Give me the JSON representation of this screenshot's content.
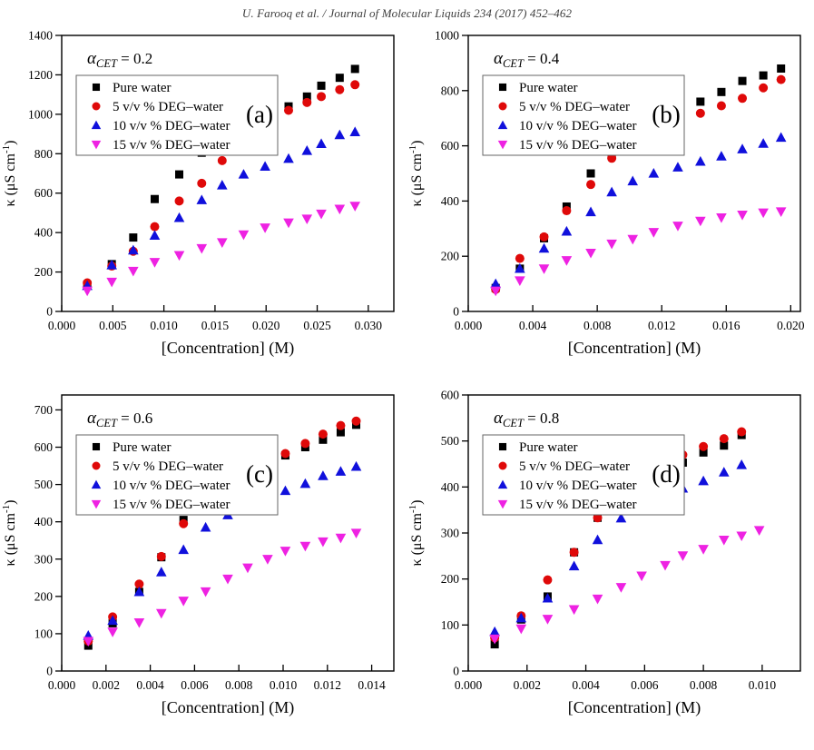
{
  "page": {
    "header": "U. Farooq et al. / Journal of Molecular Liquids 234 (2017) 452–462"
  },
  "chart_data": [
    {
      "type": "scatter",
      "letter": "(a)",
      "alpha": {
        "symbol": "α",
        "sub": "CET",
        "value": "= 0.2"
      },
      "xlabel": "[Concentration] (M)",
      "ylabel": {
        "pre": "κ (μS cm",
        "sup": "-1",
        "post": ")"
      },
      "xlim": [
        0,
        0.0325
      ],
      "ylim": [
        0,
        1400
      ],
      "xticks": [
        0,
        0.005,
        0.01,
        0.015,
        0.02,
        0.025,
        0.03
      ],
      "yticks": [
        0,
        200,
        400,
        600,
        800,
        1000,
        1200,
        1400
      ],
      "legend_position": "upper-left",
      "grid": false,
      "series": [
        {
          "name": "Pure water",
          "marker": "square",
          "color": "#000000",
          "x": [
            0.0025,
            0.0049,
            0.007,
            0.0091,
            0.0115,
            0.0137,
            0.0157,
            0.0178,
            0.0199,
            0.0222,
            0.024,
            0.0254,
            0.0272,
            0.0287
          ],
          "y": [
            135,
            240,
            375,
            570,
            695,
            805,
            865,
            935,
            1000,
            1040,
            1090,
            1145,
            1185,
            1230
          ]
        },
        {
          "name": "5 v/v % DEG–water",
          "marker": "circle",
          "color": "#df0909",
          "x": [
            0.0025,
            0.0049,
            0.007,
            0.0091,
            0.0115,
            0.0137,
            0.0157,
            0.0178,
            0.0199,
            0.0222,
            0.024,
            0.0254,
            0.0272,
            0.0287
          ],
          "y": [
            145,
            230,
            305,
            430,
            560,
            650,
            765,
            865,
            965,
            1020,
            1060,
            1090,
            1125,
            1150
          ]
        },
        {
          "name": "10 v/v % DEG–water",
          "marker": "triangle-up",
          "color": "#1010dc",
          "x": [
            0.0025,
            0.0049,
            0.007,
            0.0091,
            0.0115,
            0.0137,
            0.0157,
            0.0178,
            0.0199,
            0.0222,
            0.024,
            0.0254,
            0.0272,
            0.0287
          ],
          "y": [
            130,
            235,
            310,
            385,
            475,
            565,
            640,
            695,
            735,
            775,
            815,
            850,
            895,
            910
          ]
        },
        {
          "name": "15 v/v % DEG–water",
          "marker": "triangle-down",
          "color": "#ee22e2",
          "x": [
            0.0025,
            0.0049,
            0.007,
            0.0091,
            0.0115,
            0.0137,
            0.0157,
            0.0178,
            0.0199,
            0.0222,
            0.024,
            0.0254,
            0.0272,
            0.0287
          ],
          "y": [
            105,
            150,
            205,
            250,
            285,
            320,
            350,
            390,
            425,
            450,
            470,
            495,
            520,
            535
          ]
        }
      ]
    },
    {
      "type": "scatter",
      "letter": "(b)",
      "alpha": {
        "symbol": "α",
        "sub": "CET",
        "value": "= 0.4"
      },
      "xlabel": "[Concentration] (M)",
      "ylabel": {
        "pre": "κ (μS cm",
        "sup": "-1",
        "post": ")"
      },
      "xlim": [
        0,
        0.0206
      ],
      "ylim": [
        0,
        1000
      ],
      "xticks": [
        0,
        0.004,
        0.008,
        0.012,
        0.016,
        0.02
      ],
      "yticks": [
        0,
        200,
        400,
        600,
        800,
        1000
      ],
      "legend_position": "upper-left",
      "grid": false,
      "series": [
        {
          "name": "Pure water",
          "marker": "square",
          "color": "#000000",
          "x": [
            0.0017,
            0.0032,
            0.0047,
            0.0061,
            0.0076,
            0.0089,
            0.0102,
            0.0115,
            0.013,
            0.0144,
            0.0157,
            0.017,
            0.0183,
            0.0194
          ],
          "y": [
            85,
            155,
            265,
            380,
            500,
            565,
            615,
            660,
            715,
            760,
            795,
            835,
            855,
            880
          ]
        },
        {
          "name": "5 v/v % DEG–water",
          "marker": "circle",
          "color": "#df0909",
          "x": [
            0.0017,
            0.0032,
            0.0047,
            0.0061,
            0.0076,
            0.0089,
            0.0102,
            0.0115,
            0.013,
            0.0144,
            0.0157,
            0.017,
            0.0183,
            0.0194
          ],
          "y": [
            80,
            192,
            270,
            365,
            460,
            555,
            610,
            645,
            685,
            718,
            745,
            772,
            810,
            840
          ]
        },
        {
          "name": "10 v/v % DEG–water",
          "marker": "triangle-up",
          "color": "#1010dc",
          "x": [
            0.0017,
            0.0032,
            0.0047,
            0.0061,
            0.0076,
            0.0089,
            0.0102,
            0.0115,
            0.013,
            0.0144,
            0.0157,
            0.017,
            0.0183,
            0.0194
          ],
          "y": [
            100,
            155,
            228,
            290,
            360,
            432,
            472,
            500,
            522,
            543,
            562,
            588,
            608,
            630
          ]
        },
        {
          "name": "15 v/v % DEG–water",
          "marker": "triangle-down",
          "color": "#ee22e2",
          "x": [
            0.0017,
            0.0032,
            0.0047,
            0.0061,
            0.0076,
            0.0089,
            0.0102,
            0.0115,
            0.013,
            0.0144,
            0.0157,
            0.017,
            0.0183,
            0.0194
          ],
          "y": [
            75,
            112,
            155,
            185,
            212,
            245,
            262,
            287,
            310,
            328,
            340,
            350,
            358,
            362
          ]
        }
      ]
    },
    {
      "type": "scatter",
      "letter": "(c)",
      "alpha": {
        "symbol": "α",
        "sub": "CET",
        "value": "= 0.6"
      },
      "xlabel": "[Concentration] (M)",
      "ylabel": {
        "pre": "κ (μS cm",
        "sup": "-1",
        "post": ")"
      },
      "xlim": [
        0,
        0.015
      ],
      "ylim": [
        0,
        740
      ],
      "xticks": [
        0,
        0.002,
        0.004,
        0.006,
        0.008,
        0.01,
        0.012,
        0.014
      ],
      "yticks": [
        0,
        100,
        200,
        300,
        400,
        500,
        600,
        700
      ],
      "legend_position": "upper-left",
      "grid": false,
      "series": [
        {
          "name": "Pure water",
          "marker": "square",
          "color": "#000000",
          "x": [
            0.0012,
            0.0023,
            0.0035,
            0.0045,
            0.0055,
            0.0065,
            0.0075,
            0.0084,
            0.0093,
            0.0101,
            0.011,
            0.0118,
            0.0126,
            0.0133
          ],
          "y": [
            68,
            128,
            212,
            305,
            405,
            455,
            488,
            522,
            550,
            578,
            600,
            620,
            640,
            660
          ]
        },
        {
          "name": "5 v/v % DEG–water",
          "marker": "circle",
          "color": "#df0909",
          "x": [
            0.0012,
            0.0023,
            0.0035,
            0.0045,
            0.0055,
            0.0065,
            0.0075,
            0.0084,
            0.0093,
            0.0101,
            0.011,
            0.0118,
            0.0126,
            0.0133
          ],
          "y": [
            80,
            145,
            233,
            307,
            395,
            455,
            500,
            528,
            552,
            583,
            610,
            635,
            658,
            670
          ]
        },
        {
          "name": "10 v/v % DEG–water",
          "marker": "triangle-up",
          "color": "#1010dc",
          "x": [
            0.0012,
            0.0023,
            0.0035,
            0.0045,
            0.0055,
            0.0065,
            0.0075,
            0.0084,
            0.0093,
            0.0101,
            0.011,
            0.0118,
            0.0126,
            0.0133
          ],
          "y": [
            95,
            135,
            212,
            265,
            325,
            385,
            418,
            440,
            462,
            483,
            502,
            523,
            535,
            548
          ]
        },
        {
          "name": "15 v/v % DEG–water",
          "marker": "triangle-down",
          "color": "#ee22e2",
          "x": [
            0.0012,
            0.0023,
            0.0035,
            0.0045,
            0.0055,
            0.0065,
            0.0075,
            0.0084,
            0.0093,
            0.0101,
            0.011,
            0.0118,
            0.0126,
            0.0133
          ],
          "y": [
            80,
            105,
            130,
            155,
            188,
            213,
            247,
            277,
            300,
            322,
            335,
            347,
            357,
            370
          ]
        }
      ]
    },
    {
      "type": "scatter",
      "letter": "(d)",
      "alpha": {
        "symbol": "α",
        "sub": "CET",
        "value": "= 0.8"
      },
      "xlabel": "[Concentration] (M)",
      "ylabel": {
        "pre": "κ (μS cm",
        "sup": "-1",
        "post": ")"
      },
      "xlim": [
        0,
        0.0113
      ],
      "ylim": [
        0,
        600
      ],
      "xticks": [
        0,
        0.002,
        0.004,
        0.006,
        0.008,
        0.01
      ],
      "yticks": [
        0,
        100,
        200,
        300,
        400,
        500,
        600
      ],
      "legend_position": "upper-left",
      "grid": false,
      "series": [
        {
          "name": "Pure water",
          "marker": "square",
          "color": "#000000",
          "x": [
            0.0009,
            0.0018,
            0.0027,
            0.0036,
            0.0044,
            0.0052,
            0.0059,
            0.0067,
            0.0073,
            0.008,
            0.0087,
            0.0093
          ],
          "y": [
            58,
            112,
            162,
            258,
            333,
            378,
            408,
            432,
            453,
            475,
            490,
            513
          ]
        },
        {
          "name": "5 v/v % DEG–water",
          "marker": "circle",
          "color": "#df0909",
          "x": [
            0.0009,
            0.0018,
            0.0027,
            0.0036,
            0.0044,
            0.0052,
            0.0059,
            0.0067,
            0.0073,
            0.008,
            0.0087,
            0.0093
          ],
          "y": [
            72,
            120,
            198,
            258,
            333,
            395,
            425,
            448,
            470,
            488,
            505,
            520
          ]
        },
        {
          "name": "10 v/v % DEG–water",
          "marker": "triangle-up",
          "color": "#1010dc",
          "x": [
            0.0009,
            0.0018,
            0.0027,
            0.0036,
            0.0044,
            0.0052,
            0.0059,
            0.0067,
            0.0073,
            0.008,
            0.0087,
            0.0093
          ],
          "y": [
            85,
            115,
            158,
            228,
            285,
            332,
            357,
            380,
            397,
            413,
            432,
            448
          ]
        },
        {
          "name": "15 v/v % DEG–water",
          "marker": "triangle-down",
          "color": "#ee22e2",
          "x": [
            0.0009,
            0.0018,
            0.0027,
            0.0036,
            0.0044,
            0.0052,
            0.0059,
            0.0067,
            0.0073,
            0.008,
            0.0087,
            0.0093,
            0.0099
          ],
          "y": [
            70,
            92,
            113,
            134,
            157,
            182,
            207,
            230,
            251,
            265,
            285,
            294,
            306
          ]
        }
      ]
    }
  ]
}
